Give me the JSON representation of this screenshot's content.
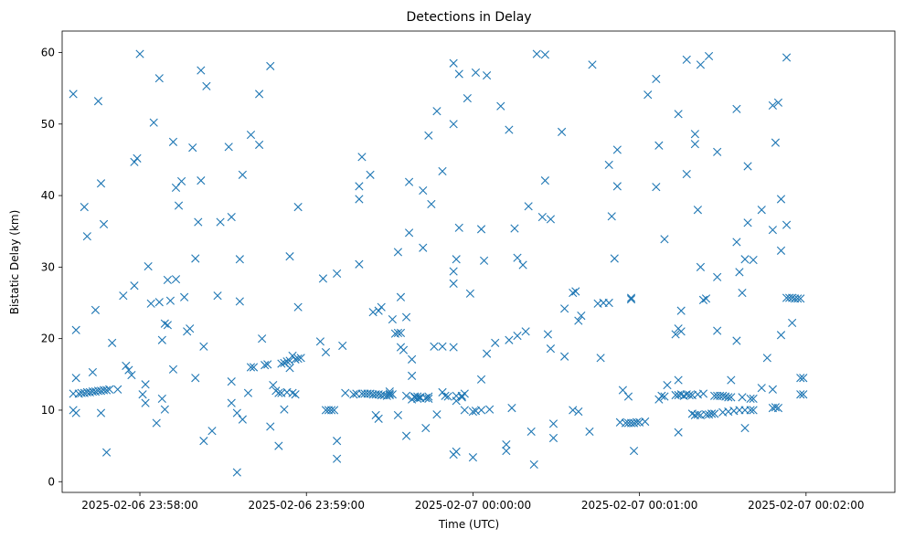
{
  "chart_data": {
    "type": "scatter",
    "title": "Detections in Delay",
    "xlabel": "Time (UTC)",
    "ylabel": "Bistatic Delay (km)",
    "marker": "x",
    "color": "#1f77b4",
    "grid": false,
    "x_axis": {
      "kind": "time",
      "min": "2025-02-06 23:57:32",
      "max": "2025-02-07 00:02:32",
      "ticks": [
        "2025-02-06 23:58:00",
        "2025-02-06 23:59:00",
        "2025-02-07 00:00:00",
        "2025-02-07 00:01:00",
        "2025-02-07 00:02:00"
      ]
    },
    "y_axis": {
      "min": -1.5,
      "max": 63,
      "ticks": [
        0,
        10,
        20,
        30,
        40,
        50,
        60
      ]
    },
    "points": [
      [
        "23:57:36",
        54.2
      ],
      [
        "23:57:36",
        12.3
      ],
      [
        "23:57:37",
        21.2
      ],
      [
        "23:57:37",
        14.5
      ],
      [
        "23:57:36",
        10.0
      ],
      [
        "23:57:37",
        9.6
      ],
      [
        "23:57:38",
        12.3
      ],
      [
        "23:57:39",
        12.4
      ],
      [
        "23:57:40",
        12.4
      ],
      [
        "23:57:41",
        12.5
      ],
      [
        "23:57:42",
        12.5
      ],
      [
        "23:57:43",
        12.6
      ],
      [
        "23:57:44",
        12.6
      ],
      [
        "23:57:45",
        12.7
      ],
      [
        "23:57:46",
        12.7
      ],
      [
        "23:57:47",
        12.8
      ],
      [
        "23:57:48",
        12.8
      ],
      [
        "23:57:49",
        12.9
      ],
      [
        "23:57:40",
        38.4
      ],
      [
        "23:57:41",
        34.3
      ],
      [
        "23:57:43",
        15.3
      ],
      [
        "23:57:44",
        24.0
      ],
      [
        "23:57:45",
        53.2
      ],
      [
        "23:57:46",
        41.7
      ],
      [
        "23:57:47",
        36.0
      ],
      [
        "23:57:46",
        9.6
      ],
      [
        "23:57:48",
        4.1
      ],
      [
        "23:57:50",
        19.4
      ],
      [
        "23:57:52",
        12.9
      ],
      [
        "23:57:54",
        26.0
      ],
      [
        "23:57:55",
        16.2
      ],
      [
        "23:57:56",
        15.6
      ],
      [
        "23:57:57",
        14.9
      ],
      [
        "23:57:58",
        27.4
      ],
      [
        "23:57:58",
        44.7
      ],
      [
        "23:57:59",
        45.2
      ],
      [
        "23:58:00",
        59.8
      ],
      [
        "23:58:01",
        12.2
      ],
      [
        "23:58:02",
        11.0
      ],
      [
        "23:58:02",
        13.6
      ],
      [
        "23:58:03",
        30.1
      ],
      [
        "23:58:04",
        24.9
      ],
      [
        "23:58:05",
        50.2
      ],
      [
        "23:58:06",
        8.2
      ],
      [
        "23:58:07",
        25.1
      ],
      [
        "23:58:07",
        56.4
      ],
      [
        "23:58:08",
        19.8
      ],
      [
        "23:58:08",
        11.6
      ],
      [
        "23:58:09",
        10.1
      ],
      [
        "23:58:09",
        22.1
      ],
      [
        "23:58:10",
        21.9
      ],
      [
        "23:58:10",
        28.2
      ],
      [
        "23:58:11",
        25.3
      ],
      [
        "23:58:12",
        47.5
      ],
      [
        "23:58:12",
        15.7
      ],
      [
        "23:58:13",
        28.3
      ],
      [
        "23:58:13",
        41.1
      ],
      [
        "23:58:14",
        38.6
      ],
      [
        "23:58:15",
        42.0
      ],
      [
        "23:58:16",
        25.8
      ],
      [
        "23:58:17",
        21.0
      ],
      [
        "23:58:18",
        21.4
      ],
      [
        "23:58:19",
        46.7
      ],
      [
        "23:58:20",
        14.5
      ],
      [
        "23:58:20",
        31.2
      ],
      [
        "23:58:21",
        36.3
      ],
      [
        "23:58:22",
        57.5
      ],
      [
        "23:58:22",
        42.1
      ],
      [
        "23:58:23",
        18.9
      ],
      [
        "23:58:23",
        5.7
      ],
      [
        "23:58:24",
        55.3
      ],
      [
        "23:58:26",
        7.1
      ],
      [
        "23:58:28",
        26.0
      ],
      [
        "23:58:29",
        36.3
      ],
      [
        "23:58:32",
        46.8
      ],
      [
        "23:58:33",
        11.0
      ],
      [
        "23:58:33",
        14.0
      ],
      [
        "23:58:33",
        37.0
      ],
      [
        "23:58:35",
        9.6
      ],
      [
        "23:58:35",
        1.3
      ],
      [
        "23:58:36",
        25.2
      ],
      [
        "23:58:36",
        31.1
      ],
      [
        "23:58:37",
        8.7
      ],
      [
        "23:58:37",
        42.9
      ],
      [
        "23:58:39",
        12.4
      ],
      [
        "23:58:40",
        48.5
      ],
      [
        "23:58:40",
        16.0
      ],
      [
        "23:58:41",
        16.0
      ],
      [
        "23:58:43",
        54.2
      ],
      [
        "23:58:43",
        47.1
      ],
      [
        "23:58:44",
        20.0
      ],
      [
        "23:58:45",
        16.3
      ],
      [
        "23:58:46",
        16.4
      ],
      [
        "23:58:47",
        7.7
      ],
      [
        "23:58:47",
        58.1
      ],
      [
        "23:58:48",
        13.5
      ],
      [
        "23:58:49",
        12.7
      ],
      [
        "23:58:50",
        5.0
      ],
      [
        "23:58:50",
        12.4
      ],
      [
        "23:58:51",
        16.5
      ],
      [
        "23:58:51",
        12.4
      ],
      [
        "23:58:52",
        16.6
      ],
      [
        "23:58:52",
        10.1
      ],
      [
        "23:58:53",
        12.5
      ],
      [
        "23:58:53",
        16.8
      ],
      [
        "23:58:54",
        16.9
      ],
      [
        "23:58:54",
        15.9
      ],
      [
        "23:58:54",
        31.5
      ],
      [
        "23:58:55",
        17.6
      ],
      [
        "23:58:55",
        12.4
      ],
      [
        "23:58:56",
        17.1
      ],
      [
        "23:58:56",
        12.2
      ],
      [
        "23:58:57",
        38.4
      ],
      [
        "23:58:57",
        24.4
      ],
      [
        "23:58:57",
        17.2
      ],
      [
        "23:58:58",
        17.3
      ],
      [
        "23:59:05",
        19.6
      ],
      [
        "23:59:06",
        28.4
      ],
      [
        "23:59:07",
        18.1
      ],
      [
        "23:59:07",
        10.0
      ],
      [
        "23:59:08",
        10.0
      ],
      [
        "23:59:09",
        10.0
      ],
      [
        "23:59:10",
        10.0
      ],
      [
        "23:59:11",
        3.2
      ],
      [
        "23:59:11",
        5.7
      ],
      [
        "23:59:11",
        29.1
      ],
      [
        "23:59:13",
        19.0
      ],
      [
        "23:59:14",
        12.4
      ],
      [
        "23:59:17",
        12.2
      ],
      [
        "23:59:18",
        12.3
      ],
      [
        "23:59:19",
        41.3
      ],
      [
        "23:59:19",
        39.5
      ],
      [
        "23:59:19",
        30.4
      ],
      [
        "23:59:20",
        45.4
      ],
      [
        "23:59:20",
        12.3
      ],
      [
        "23:59:21",
        12.3
      ],
      [
        "23:59:22",
        12.3
      ],
      [
        "23:59:23",
        42.9
      ],
      [
        "23:59:23",
        12.3
      ],
      [
        "23:59:24",
        12.2
      ],
      [
        "23:59:24",
        23.7
      ],
      [
        "23:59:25",
        9.3
      ],
      [
        "23:59:25",
        12.2
      ],
      [
        "23:59:26",
        12.2
      ],
      [
        "23:59:26",
        8.8
      ],
      [
        "23:59:26",
        23.9
      ],
      [
        "23:59:27",
        24.4
      ],
      [
        "23:59:27",
        12.1
      ],
      [
        "23:59:28",
        12.1
      ],
      [
        "23:59:29",
        12.0
      ],
      [
        "23:59:30",
        12.1
      ],
      [
        "23:59:30",
        12.6
      ],
      [
        "23:59:30",
        12.3
      ],
      [
        "23:59:31",
        12.2
      ],
      [
        "23:59:31",
        22.7
      ],
      [
        "23:59:32",
        20.7
      ],
      [
        "23:59:33",
        20.8
      ],
      [
        "23:59:33",
        9.3
      ],
      [
        "23:59:33",
        32.1
      ],
      [
        "23:59:34",
        18.8
      ],
      [
        "23:59:34",
        25.8
      ],
      [
        "23:59:34",
        20.8
      ],
      [
        "23:59:35",
        18.4
      ],
      [
        "23:59:36",
        23.0
      ],
      [
        "23:59:36",
        12.0
      ],
      [
        "23:59:36",
        6.4
      ],
      [
        "23:59:37",
        34.8
      ],
      [
        "23:59:37",
        41.9
      ],
      [
        "23:59:38",
        17.1
      ],
      [
        "23:59:38",
        11.5
      ],
      [
        "23:59:38",
        14.8
      ],
      [
        "23:59:39",
        11.8
      ],
      [
        "23:59:39",
        11.9
      ],
      [
        "23:59:40",
        11.6
      ],
      [
        "23:59:40",
        11.9
      ],
      [
        "23:59:41",
        11.7
      ],
      [
        "23:59:41",
        11.8
      ],
      [
        "23:59:42",
        40.7
      ],
      [
        "23:59:42",
        32.7
      ],
      [
        "23:59:43",
        11.7
      ],
      [
        "23:59:43",
        7.5
      ],
      [
        "23:59:44",
        11.6
      ],
      [
        "23:59:44",
        11.9
      ],
      [
        "23:59:44",
        48.4
      ],
      [
        "23:59:45",
        38.8
      ],
      [
        "23:59:46",
        18.9
      ],
      [
        "23:59:47",
        9.4
      ],
      [
        "23:59:47",
        51.8
      ],
      [
        "23:59:49",
        18.9
      ],
      [
        "23:59:49",
        43.4
      ],
      [
        "23:59:49",
        12.5
      ],
      [
        "23:59:50",
        12.0
      ],
      [
        "23:59:51",
        11.9
      ],
      [
        "23:59:53",
        58.5
      ],
      [
        "23:59:53",
        50.0
      ],
      [
        "23:59:53",
        18.8
      ],
      [
        "23:59:53",
        3.8
      ],
      [
        "23:59:53",
        29.4
      ],
      [
        "23:59:53",
        27.7
      ],
      [
        "23:59:54",
        31.1
      ],
      [
        "23:59:54",
        12.0
      ],
      [
        "23:59:54",
        11.3
      ],
      [
        "23:59:54",
        4.2
      ],
      [
        "23:59:55",
        35.5
      ],
      [
        "23:59:55",
        57.0
      ],
      [
        "23:59:56",
        12.0
      ],
      [
        "23:59:56",
        11.8
      ],
      [
        "23:59:57",
        10.0
      ],
      [
        "23:59:57",
        12.3
      ],
      [
        "23:59:58",
        53.6
      ],
      [
        "23:59:59",
        26.3
      ],
      [
        "00:00:00",
        3.4
      ],
      [
        "00:00:00",
        9.8
      ],
      [
        "00:00:01",
        57.2
      ],
      [
        "00:00:01",
        9.9
      ],
      [
        "00:00:03",
        14.3
      ],
      [
        "00:00:03",
        35.3
      ],
      [
        "00:00:03",
        10.0
      ],
      [
        "00:00:04",
        30.9
      ],
      [
        "00:00:05",
        56.8
      ],
      [
        "00:00:05",
        17.9
      ],
      [
        "00:00:06",
        10.1
      ],
      [
        "00:00:08",
        19.4
      ],
      [
        "00:00:10",
        52.5
      ],
      [
        "00:00:12",
        4.3
      ],
      [
        "00:00:12",
        5.2
      ],
      [
        "00:00:13",
        49.2
      ],
      [
        "00:00:13",
        19.8
      ],
      [
        "00:00:14",
        10.3
      ],
      [
        "00:00:15",
        35.4
      ],
      [
        "00:00:16",
        20.4
      ],
      [
        "00:00:16",
        31.3
      ],
      [
        "00:00:18",
        30.3
      ],
      [
        "00:00:19",
        21.0
      ],
      [
        "00:00:20",
        38.5
      ],
      [
        "00:00:21",
        7.0
      ],
      [
        "00:00:22",
        2.4
      ],
      [
        "00:00:23",
        59.8
      ],
      [
        "00:00:25",
        37.0
      ],
      [
        "00:00:26",
        59.7
      ],
      [
        "00:00:26",
        42.1
      ],
      [
        "00:00:27",
        20.6
      ],
      [
        "00:00:28",
        18.6
      ],
      [
        "00:00:29",
        8.1
      ],
      [
        "00:00:29",
        6.1
      ],
      [
        "00:00:28",
        36.7
      ],
      [
        "00:00:32",
        48.9
      ],
      [
        "00:00:33",
        17.5
      ],
      [
        "00:00:33",
        24.2
      ],
      [
        "00:00:36",
        26.4
      ],
      [
        "00:00:36",
        10.0
      ],
      [
        "00:00:37",
        26.6
      ],
      [
        "00:00:38",
        22.5
      ],
      [
        "00:00:38",
        9.8
      ],
      [
        "00:00:39",
        23.2
      ],
      [
        "00:00:42",
        7.0
      ],
      [
        "00:00:43",
        58.3
      ],
      [
        "00:00:45",
        24.9
      ],
      [
        "00:00:46",
        17.3
      ],
      [
        "00:00:47",
        25.0
      ],
      [
        "00:00:49",
        25.0
      ],
      [
        "00:00:49",
        44.3
      ],
      [
        "00:00:50",
        37.1
      ],
      [
        "00:00:51",
        31.2
      ],
      [
        "00:00:52",
        46.4
      ],
      [
        "00:00:52",
        41.3
      ],
      [
        "00:00:53",
        8.3
      ],
      [
        "00:00:54",
        12.8
      ],
      [
        "00:00:55",
        8.2
      ],
      [
        "00:00:56",
        8.2
      ],
      [
        "00:00:56",
        11.9
      ],
      [
        "00:00:57",
        25.7
      ],
      [
        "00:00:57",
        25.5
      ],
      [
        "00:00:57",
        8.2
      ],
      [
        "00:00:58",
        8.2
      ],
      [
        "00:00:58",
        4.3
      ],
      [
        "00:00:59",
        8.3
      ],
      [
        "00:01:00",
        8.3
      ],
      [
        "00:01:02",
        8.4
      ],
      [
        "00:01:03",
        54.1
      ],
      [
        "00:01:06",
        56.3
      ],
      [
        "00:01:06",
        41.2
      ],
      [
        "00:01:07",
        11.5
      ],
      [
        "00:01:07",
        47.0
      ],
      [
        "00:01:08",
        12.0
      ],
      [
        "00:01:09",
        33.9
      ],
      [
        "00:01:09",
        11.9
      ],
      [
        "00:01:10",
        13.5
      ],
      [
        "00:01:13",
        12.1
      ],
      [
        "00:01:13",
        20.6
      ],
      [
        "00:01:14",
        12.1
      ],
      [
        "00:01:14",
        21.4
      ],
      [
        "00:01:15",
        21.0
      ],
      [
        "00:01:14",
        51.4
      ],
      [
        "00:01:14",
        14.2
      ],
      [
        "00:01:14",
        6.9
      ],
      [
        "00:01:15",
        12.2
      ],
      [
        "00:01:15",
        23.9
      ],
      [
        "00:01:16",
        12.0
      ],
      [
        "00:01:17",
        12.2
      ],
      [
        "00:01:17",
        59.0
      ],
      [
        "00:01:17",
        43.0
      ],
      [
        "00:01:18",
        12.1
      ],
      [
        "00:01:19",
        12.1
      ],
      [
        "00:01:19",
        9.5
      ],
      [
        "00:01:20",
        48.6
      ],
      [
        "00:01:20",
        47.2
      ],
      [
        "00:01:20",
        9.3
      ],
      [
        "00:01:21",
        12.2
      ],
      [
        "00:01:21",
        38.0
      ],
      [
        "00:01:21",
        9.4
      ],
      [
        "00:01:22",
        30.0
      ],
      [
        "00:01:22",
        9.3
      ],
      [
        "00:01:22",
        58.3
      ],
      [
        "00:01:23",
        12.3
      ],
      [
        "00:01:23",
        25.4
      ],
      [
        "00:01:24",
        9.4
      ],
      [
        "00:01:24",
        25.6
      ],
      [
        "00:01:25",
        9.4
      ],
      [
        "00:01:25",
        59.5
      ],
      [
        "00:01:26",
        9.5
      ],
      [
        "00:01:27",
        12.0
      ],
      [
        "00:01:27",
        9.5
      ],
      [
        "00:01:28",
        12.0
      ],
      [
        "00:01:28",
        21.1
      ],
      [
        "00:01:28",
        46.1
      ],
      [
        "00:01:28",
        28.6
      ],
      [
        "00:01:29",
        12.0
      ],
      [
        "00:01:30",
        12.0
      ],
      [
        "00:01:30",
        9.7
      ],
      [
        "00:01:31",
        11.9
      ],
      [
        "00:01:32",
        9.8
      ],
      [
        "00:01:32",
        11.8
      ],
      [
        "00:01:33",
        11.8
      ],
      [
        "00:01:33",
        14.2
      ],
      [
        "00:01:34",
        9.9
      ],
      [
        "00:01:35",
        52.1
      ],
      [
        "00:01:35",
        33.5
      ],
      [
        "00:01:35",
        19.7
      ],
      [
        "00:01:36",
        10.0
      ],
      [
        "00:01:36",
        29.3
      ],
      [
        "00:01:37",
        26.4
      ],
      [
        "00:01:37",
        11.8
      ],
      [
        "00:01:38",
        31.1
      ],
      [
        "00:01:38",
        10.0
      ],
      [
        "00:01:38",
        7.5
      ],
      [
        "00:01:39",
        36.2
      ],
      [
        "00:01:39",
        44.1
      ],
      [
        "00:01:40",
        11.6
      ],
      [
        "00:01:40",
        10.0
      ],
      [
        "00:01:41",
        11.6
      ],
      [
        "00:01:41",
        31.0
      ],
      [
        "00:01:41",
        10.0
      ],
      [
        "00:01:44",
        38.0
      ],
      [
        "00:01:44",
        13.1
      ],
      [
        "00:01:46",
        17.3
      ],
      [
        "00:01:48",
        12.9
      ],
      [
        "00:01:48",
        52.6
      ],
      [
        "00:01:48",
        10.3
      ],
      [
        "00:01:48",
        35.2
      ],
      [
        "00:01:49",
        47.4
      ],
      [
        "00:01:49",
        10.4
      ],
      [
        "00:01:50",
        10.3
      ],
      [
        "00:01:50",
        53.0
      ],
      [
        "00:01:51",
        20.5
      ],
      [
        "00:01:51",
        39.5
      ],
      [
        "00:01:51",
        32.3
      ],
      [
        "00:01:53",
        25.7
      ],
      [
        "00:01:53",
        35.9
      ],
      [
        "00:01:53",
        59.3
      ],
      [
        "00:01:54",
        25.7
      ],
      [
        "00:01:55",
        25.7
      ],
      [
        "00:01:55",
        22.2
      ],
      [
        "00:01:56",
        25.6
      ],
      [
        "00:01:57",
        25.6
      ],
      [
        "00:01:58",
        25.6
      ],
      [
        "00:01:58",
        12.2
      ],
      [
        "00:01:58",
        14.5
      ],
      [
        "00:01:59",
        14.5
      ],
      [
        "00:01:59",
        12.2
      ]
    ]
  }
}
